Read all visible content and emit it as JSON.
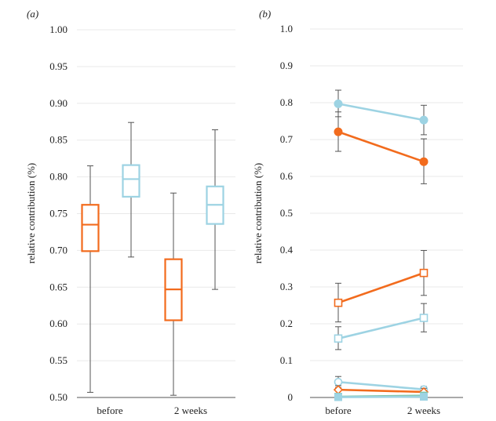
{
  "chart_data": [
    {
      "panel_label": "(a)",
      "type": "box",
      "ylabel": "relative contribution (%)",
      "ylim": [
        0.5,
        1.0
      ],
      "yticks": [
        "1.00",
        "0.95",
        "0.90",
        "0.85",
        "0.80",
        "0.75",
        "0.70",
        "0.65",
        "0.60",
        "0.55",
        "0.50"
      ],
      "categories": [
        "before",
        "2 weeks"
      ],
      "grid": true,
      "boxes": [
        {
          "category": "before",
          "color": "#f26b1d",
          "min": 0.507,
          "q1": 0.699,
          "median": 0.735,
          "q3": 0.762,
          "max": 0.815
        },
        {
          "category": "before",
          "color": "#9dd3e3",
          "min": 0.691,
          "q1": 0.773,
          "median": 0.797,
          "q3": 0.816,
          "max": 0.874
        },
        {
          "category": "2 weeks",
          "color": "#f26b1d",
          "min": 0.503,
          "q1": 0.605,
          "median": 0.647,
          "q3": 0.688,
          "max": 0.778
        },
        {
          "category": "2 weeks",
          "color": "#9dd3e3",
          "min": 0.647,
          "q1": 0.736,
          "median": 0.762,
          "q3": 0.787,
          "max": 0.864
        }
      ]
    },
    {
      "panel_label": "(b)",
      "type": "line",
      "ylabel": "relative contribution (%)",
      "ylim": [
        0,
        1.0
      ],
      "yticks": [
        "1.0",
        "0.9",
        "0.8",
        "0.7",
        "0.6",
        "0.5",
        "0.4",
        "0.3",
        "0.2",
        "0.1",
        "0"
      ],
      "categories": [
        "before",
        "2 weeks"
      ],
      "grid": true,
      "series": [
        {
          "color": "#9dd3e3",
          "marker": "circle-filled",
          "values": [
            0.797,
            0.753
          ],
          "err_low": [
            0.762,
            0.713
          ],
          "err_high": [
            0.834,
            0.793
          ]
        },
        {
          "color": "#f26b1d",
          "marker": "circle-filled",
          "values": [
            0.721,
            0.64
          ],
          "err_low": [
            0.668,
            0.58
          ],
          "err_high": [
            0.775,
            0.702
          ]
        },
        {
          "color": "#f26b1d",
          "marker": "square-open",
          "values": [
            0.257,
            0.338
          ],
          "err_low": [
            0.205,
            0.277
          ],
          "err_high": [
            0.31,
            0.399
          ]
        },
        {
          "color": "#9dd3e3",
          "marker": "square-open",
          "values": [
            0.16,
            0.216
          ],
          "err_low": [
            0.13,
            0.178
          ],
          "err_high": [
            0.192,
            0.255
          ]
        },
        {
          "color": "#9dd3e3",
          "marker": "circle-open",
          "values": [
            0.042,
            0.022
          ],
          "err_low": [
            0.027,
            0.015
          ],
          "err_high": [
            0.057,
            0.03
          ]
        },
        {
          "color": "#f26b1d",
          "marker": "diamond-open",
          "values": [
            0.021,
            0.015
          ],
          "err_low": [
            0.01,
            0.006
          ],
          "err_high": [
            0.032,
            0.025
          ]
        },
        {
          "color": "#7fc5a8",
          "marker": "square-filled",
          "values": [
            0.002,
            0.005
          ],
          "err_low": [
            0.0,
            0.001
          ],
          "err_high": [
            0.005,
            0.008
          ]
        },
        {
          "color": "#9dd3e3",
          "marker": "square-filled",
          "values": [
            0.001,
            0.002
          ],
          "err_low": [
            0.0,
            0.0
          ],
          "err_high": [
            0.003,
            0.004
          ]
        }
      ]
    }
  ]
}
